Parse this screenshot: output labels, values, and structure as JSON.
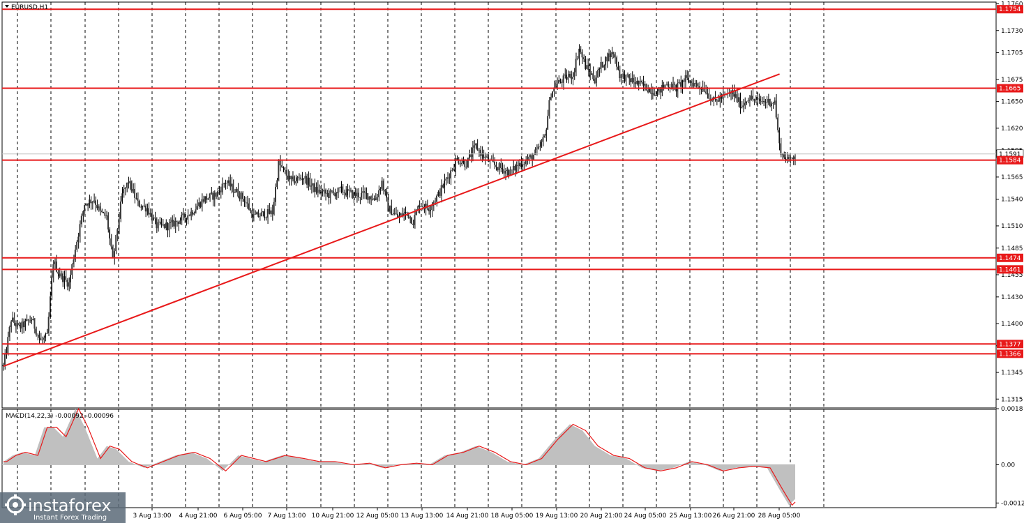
{
  "window": {
    "symbol_label": "EURUSD,H1",
    "background": "#ffffff",
    "candle_color": "#000000",
    "level_color": "#e8191a",
    "trendline_color": "#e8191a",
    "macd_hist_color": "#c0c0c0",
    "macd_signal_color": "#e8191a"
  },
  "price_axis": {
    "min": 1.1305,
    "max": 1.1762,
    "ticks": [
      "1.1760",
      "1.1730",
      "1.1705",
      "1.1675",
      "1.1650",
      "1.1620",
      "1.1595",
      "1.1565",
      "1.1540",
      "1.1510",
      "1.1485",
      "1.1455",
      "1.1430",
      "1.1400",
      "1.1375",
      "1.1345",
      "1.1315"
    ],
    "current_price": "1.1591",
    "current_price_value": 1.1591
  },
  "levels": [
    {
      "label": "1.1754",
      "value": 1.1754
    },
    {
      "label": "1.1665",
      "value": 1.1665
    },
    {
      "label": "1.1584",
      "value": 1.1584
    },
    {
      "label": "1.1474",
      "value": 1.1474
    },
    {
      "label": "1.1461",
      "value": 1.1461
    },
    {
      "label": "1.1377",
      "value": 1.1377
    },
    {
      "label": "1.1366",
      "value": 1.1366
    }
  ],
  "trendline": {
    "start_price": 1.1352,
    "end_price": 1.1681,
    "start_time": "",
    "end_time": ""
  },
  "time_axis": {
    "ticks": [
      "3 Aug 13:00",
      "4 Aug 21:00",
      "6 Aug 05:00",
      "7 Aug 13:00",
      "10 Aug 21:00",
      "12 Aug 05:00",
      "13 Aug 13:00",
      "14 Aug 21:00",
      "18 Aug 05:00",
      "19 Aug 13:00",
      "20 Aug 21:00",
      "24 Aug 05:00",
      "25 Aug 13:00",
      "26 Aug 21:00",
      "28 Aug 05:00"
    ]
  },
  "chart_data": {
    "type": "candlestick",
    "anchors": [
      [
        0,
        1.1352
      ],
      [
        2,
        1.137
      ],
      [
        5,
        1.1405
      ],
      [
        10,
        1.1395
      ],
      [
        18,
        1.1405
      ],
      [
        24,
        1.138
      ],
      [
        28,
        1.1385
      ],
      [
        32,
        1.147
      ],
      [
        36,
        1.1455
      ],
      [
        42,
        1.1445
      ],
      [
        46,
        1.1485
      ],
      [
        52,
        1.1535
      ],
      [
        58,
        1.154
      ],
      [
        62,
        1.1525
      ],
      [
        66,
        1.152
      ],
      [
        70,
        1.147
      ],
      [
        76,
        1.1545
      ],
      [
        80,
        1.156
      ],
      [
        86,
        1.1535
      ],
      [
        92,
        1.153
      ],
      [
        98,
        1.151
      ],
      [
        106,
        1.151
      ],
      [
        114,
        1.1518
      ],
      [
        120,
        1.1525
      ],
      [
        128,
        1.154
      ],
      [
        136,
        1.1545
      ],
      [
        142,
        1.156
      ],
      [
        148,
        1.155
      ],
      [
        154,
        1.154
      ],
      [
        160,
        1.152
      ],
      [
        166,
        1.1523
      ],
      [
        172,
        1.1525
      ],
      [
        176,
        1.158
      ],
      [
        184,
        1.156
      ],
      [
        192,
        1.1565
      ],
      [
        200,
        1.155
      ],
      [
        208,
        1.1545
      ],
      [
        216,
        1.155
      ],
      [
        224,
        1.1545
      ],
      [
        232,
        1.1545
      ],
      [
        238,
        1.154
      ],
      [
        242,
        1.156
      ],
      [
        246,
        1.153
      ],
      [
        252,
        1.152
      ],
      [
        258,
        1.1525
      ],
      [
        262,
        1.1515
      ],
      [
        266,
        1.1535
      ],
      [
        272,
        1.153
      ],
      [
        278,
        1.1545
      ],
      [
        284,
        1.1565
      ],
      [
        290,
        1.1585
      ],
      [
        296,
        1.158
      ],
      [
        302,
        1.16
      ],
      [
        306,
        1.159
      ],
      [
        312,
        1.158
      ],
      [
        318,
        1.1575
      ],
      [
        324,
        1.157
      ],
      [
        330,
        1.158
      ],
      [
        336,
        1.1585
      ],
      [
        342,
        1.1595
      ],
      [
        346,
        1.161
      ],
      [
        350,
        1.166
      ],
      [
        354,
        1.167
      ],
      [
        358,
        1.1675
      ],
      [
        364,
        1.168
      ],
      [
        368,
        1.171
      ],
      [
        372,
        1.169
      ],
      [
        378,
        1.1675
      ],
      [
        382,
        1.169
      ],
      [
        386,
        1.17
      ],
      [
        390,
        1.1705
      ],
      [
        394,
        1.168
      ],
      [
        400,
        1.1675
      ],
      [
        406,
        1.167
      ],
      [
        412,
        1.1665
      ],
      [
        418,
        1.166
      ],
      [
        424,
        1.167
      ],
      [
        430,
        1.1665
      ],
      [
        436,
        1.1675
      ],
      [
        442,
        1.167
      ],
      [
        448,
        1.1665
      ],
      [
        454,
        1.165
      ],
      [
        460,
        1.1655
      ],
      [
        466,
        1.166
      ],
      [
        472,
        1.1645
      ],
      [
        476,
        1.1655
      ],
      [
        482,
        1.165
      ],
      [
        488,
        1.165
      ],
      [
        493,
        1.165
      ],
      [
        496,
        1.16
      ],
      [
        498,
        1.159
      ],
      [
        502,
        1.1583
      ],
      [
        506,
        1.1591
      ]
    ],
    "macd": {
      "label": "MACD(14,22,3) -0.00092 -0.00096",
      "range": [
        -0.00138,
        0.00178
      ],
      "ticks": [
        "0.0018",
        "0.00",
        "-0.00123"
      ],
      "anchors": [
        [
          0,
          0.0001
        ],
        [
          6,
          0.0003
        ],
        [
          12,
          0.0004
        ],
        [
          20,
          0.0003
        ],
        [
          26,
          0.0012
        ],
        [
          32,
          0.0012
        ],
        [
          38,
          0.0009
        ],
        [
          46,
          0.0018
        ],
        [
          52,
          0.0012
        ],
        [
          60,
          0.0002
        ],
        [
          66,
          0.0006
        ],
        [
          72,
          0.0005
        ],
        [
          80,
          0.0001
        ],
        [
          90,
          -0.0001
        ],
        [
          100,
          0.0001
        ],
        [
          110,
          0.0003
        ],
        [
          120,
          0.0004
        ],
        [
          130,
          0.0002
        ],
        [
          140,
          -0.0002
        ],
        [
          150,
          0.0003
        ],
        [
          158,
          0.0002
        ],
        [
          166,
          0.0001
        ],
        [
          178,
          0.0003
        ],
        [
          190,
          0.0002
        ],
        [
          200,
          0.0001
        ],
        [
          210,
          0.0001
        ],
        [
          222,
          0.0
        ],
        [
          232,
          5e-05
        ],
        [
          242,
          -0.0001
        ],
        [
          252,
          0.0
        ],
        [
          262,
          5e-05
        ],
        [
          272,
          0.0
        ],
        [
          282,
          0.0003
        ],
        [
          292,
          0.0004
        ],
        [
          302,
          0.0006
        ],
        [
          312,
          0.0004
        ],
        [
          322,
          0.0001
        ],
        [
          332,
          0.0
        ],
        [
          342,
          0.0002
        ],
        [
          352,
          0.0008
        ],
        [
          362,
          0.0013
        ],
        [
          370,
          0.0011
        ],
        [
          378,
          0.0006
        ],
        [
          388,
          0.0003
        ],
        [
          398,
          0.0002
        ],
        [
          408,
          -0.0001
        ],
        [
          418,
          -0.0002
        ],
        [
          428,
          -0.0001
        ],
        [
          438,
          0.0001
        ],
        [
          448,
          0.0
        ],
        [
          458,
          -0.0002
        ],
        [
          468,
          -0.0001
        ],
        [
          478,
          -5e-05
        ],
        [
          488,
          -0.0001
        ],
        [
          496,
          -0.0008
        ],
        [
          502,
          -0.0013
        ],
        [
          506,
          -0.0011
        ]
      ]
    }
  },
  "watermark": {
    "brand": "instaforex",
    "tagline": "Instant Forex Trading"
  }
}
